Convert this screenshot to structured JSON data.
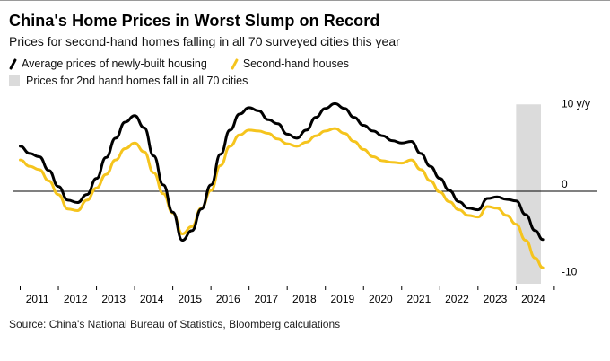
{
  "header": {
    "title": "China's Home Prices in Worst Slump on Record",
    "subtitle": "Prices for second-hand homes falling in all 70 surveyed cities this year"
  },
  "legend": {
    "items": [
      {
        "label": "Average prices of newly-built housing",
        "color": "#000000",
        "marker": "line"
      },
      {
        "label": "Second-hand houses",
        "color": "#F5C41D",
        "marker": "line"
      },
      {
        "label": "Prices for 2nd hand homes fall in all 70 cities",
        "color": "#DBDBDB",
        "marker": "square"
      }
    ]
  },
  "source": "Source: China's National Bureau of Statistics, Bloomberg calculations",
  "chart_data": {
    "type": "line",
    "unit": "y/y %",
    "x_ticks": [
      2011,
      2012,
      2013,
      2014,
      2015,
      2016,
      2017,
      2018,
      2019,
      2020,
      2021,
      2022,
      2023,
      2024
    ],
    "ylim": [
      -11.5,
      11.5
    ],
    "y_ticks": [
      {
        "value": 10,
        "label": "10 y/y"
      },
      {
        "value": 0,
        "label": "0"
      },
      {
        "value": -10,
        "label": "-10"
      }
    ],
    "band": {
      "label": "Prices for 2nd hand homes fall in all 70 cities",
      "x_start": 2024.0,
      "x_end": 2024.65,
      "color": "#DBDBDB"
    },
    "x": [
      2011.0,
      2011.25,
      2011.5,
      2011.75,
      2012.0,
      2012.25,
      2012.5,
      2012.75,
      2013.0,
      2013.25,
      2013.5,
      2013.75,
      2014.0,
      2014.25,
      2014.5,
      2014.75,
      2015.0,
      2015.25,
      2015.5,
      2015.75,
      2016.0,
      2016.25,
      2016.5,
      2016.75,
      2017.0,
      2017.25,
      2017.5,
      2017.75,
      2018.0,
      2018.25,
      2018.5,
      2018.75,
      2019.0,
      2019.25,
      2019.5,
      2019.75,
      2020.0,
      2020.25,
      2020.5,
      2020.75,
      2021.0,
      2021.25,
      2021.5,
      2021.75,
      2022.0,
      2022.25,
      2022.5,
      2022.75,
      2023.0,
      2023.25,
      2023.5,
      2023.75,
      2024.0,
      2024.25,
      2024.5,
      2024.7
    ],
    "series": [
      {
        "name": "Average prices of newly-built housing",
        "color": "#000000",
        "values": [
          5.6,
          4.7,
          4.3,
          2.6,
          0.6,
          -1.1,
          -1.4,
          -0.4,
          1.6,
          4.2,
          6.6,
          8.6,
          9.4,
          7.9,
          4.4,
          0.8,
          -2.6,
          -6.1,
          -4.9,
          -2.2,
          0.8,
          4.6,
          7.6,
          9.6,
          10.4,
          10.0,
          8.9,
          8.4,
          7.1,
          6.6,
          7.6,
          9.2,
          10.3,
          10.9,
          10.3,
          9.2,
          8.2,
          7.5,
          6.9,
          6.3,
          6.0,
          6.2,
          4.7,
          3.1,
          1.6,
          0.1,
          -1.3,
          -2.1,
          -2.3,
          -0.9,
          -0.7,
          -1.0,
          -1.2,
          -2.9,
          -4.9,
          -6.0
        ]
      },
      {
        "name": "Second-hand houses",
        "color": "#F5C41D",
        "values": [
          3.9,
          3.1,
          2.7,
          1.3,
          -0.4,
          -2.2,
          -2.4,
          -1.1,
          0.4,
          2.1,
          3.9,
          5.3,
          6.0,
          4.9,
          2.3,
          -0.3,
          -2.7,
          -5.3,
          -4.4,
          -2.1,
          0.1,
          3.2,
          5.6,
          7.0,
          7.6,
          7.5,
          7.2,
          6.5,
          5.9,
          5.6,
          6.1,
          6.9,
          7.5,
          7.8,
          7.2,
          6.2,
          5.2,
          4.3,
          3.8,
          3.6,
          3.5,
          3.9,
          2.7,
          1.3,
          -0.1,
          -1.3,
          -2.3,
          -3.0,
          -3.2,
          -1.9,
          -2.1,
          -3.0,
          -4.1,
          -6.1,
          -8.3,
          -9.5
        ]
      }
    ]
  }
}
